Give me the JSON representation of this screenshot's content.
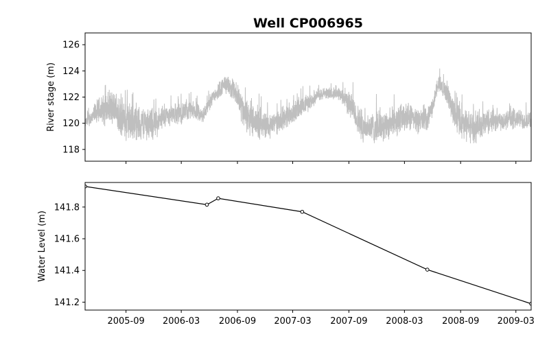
{
  "chart_data": {
    "title": "Well CP006965",
    "type": "line",
    "x_range": [
      "2005-04-20",
      "2009-04-20"
    ],
    "x_ticks": [
      "2005-09",
      "2006-03",
      "2006-09",
      "2007-03",
      "2007-09",
      "2008-03",
      "2008-09",
      "2009-03"
    ],
    "panels": [
      {
        "type": "line",
        "ylabel": "River stage (m)",
        "ylim": [
          117.1,
          126.9
        ],
        "yticks": [
          "118",
          "120",
          "122",
          "124",
          "126"
        ],
        "series": [
          {
            "color": "#bfbfbf",
            "style": "dense noisy hourly trace",
            "x": [
              "2005-04-20",
              "2005-06-01",
              "2005-07-15",
              "2005-09-01",
              "2005-10-15",
              "2005-12-01",
              "2006-01-15",
              "2006-03-01",
              "2006-04-10",
              "2006-05-10",
              "2006-06-10",
              "2006-07-01",
              "2006-07-20",
              "2006-08-20",
              "2006-09-10",
              "2006-10-10",
              "2006-11-15",
              "2006-12-15",
              "2007-01-15",
              "2007-02-15",
              "2007-03-15",
              "2007-04-15",
              "2007-05-15",
              "2007-06-15",
              "2007-07-15",
              "2007-08-15",
              "2007-09-10",
              "2007-10-10",
              "2007-11-15",
              "2007-12-15",
              "2008-01-15",
              "2008-02-15",
              "2008-03-15",
              "2008-04-15",
              "2008-05-15",
              "2008-06-01",
              "2008-06-20",
              "2008-07-20",
              "2008-08-10",
              "2008-09-05",
              "2008-10-10",
              "2008-11-15",
              "2008-12-15",
              "2009-01-15",
              "2009-02-15",
              "2009-03-15",
              "2009-04-20"
            ],
            "values": [
              120.0,
              120.9,
              121.2,
              120.1,
              120.0,
              119.9,
              120.6,
              120.8,
              121.0,
              120.5,
              122.0,
              122.5,
              123.0,
              122.5,
              121.5,
              120.2,
              120.0,
              119.8,
              120.2,
              120.6,
              121.0,
              121.5,
              122.0,
              122.3,
              122.3,
              122.0,
              121.2,
              119.8,
              119.6,
              119.8,
              120.0,
              120.3,
              120.4,
              120.2,
              120.3,
              121.3,
              123.0,
              122.3,
              120.8,
              120.0,
              119.7,
              120.0,
              120.3,
              120.2,
              120.4,
              120.3,
              120.1
            ],
            "amplitude": [
              0.4,
              1.2,
              1.6,
              1.8,
              1.6,
              1.4,
              0.9,
              1.0,
              0.8,
              0.7,
              0.7,
              0.8,
              0.8,
              1.0,
              1.5,
              1.5,
              1.4,
              1.2,
              1.0,
              1.1,
              1.0,
              0.8,
              0.6,
              0.5,
              0.5,
              0.8,
              1.3,
              1.4,
              1.4,
              1.4,
              1.3,
              1.4,
              1.2,
              1.1,
              0.9,
              0.8,
              0.8,
              1.0,
              1.3,
              1.5,
              1.4,
              1.3,
              1.1,
              1.0,
              1.0,
              0.9,
              0.7
            ]
          }
        ]
      },
      {
        "type": "line",
        "ylabel": "Water Level (m)",
        "ylim": [
          141.15,
          141.955
        ],
        "yticks": [
          "141.2",
          "141.4",
          "141.6",
          "141.8"
        ],
        "series": [
          {
            "color": "#000000",
            "marker": "circle",
            "x": [
              "2005-04-20",
              "2006-05-24",
              "2006-06-30",
              "2007-04-01",
              "2008-05-15",
              "2009-04-20"
            ],
            "y": [
              141.93,
              141.815,
              141.855,
              141.77,
              141.405,
              141.19
            ]
          }
        ]
      }
    ]
  }
}
